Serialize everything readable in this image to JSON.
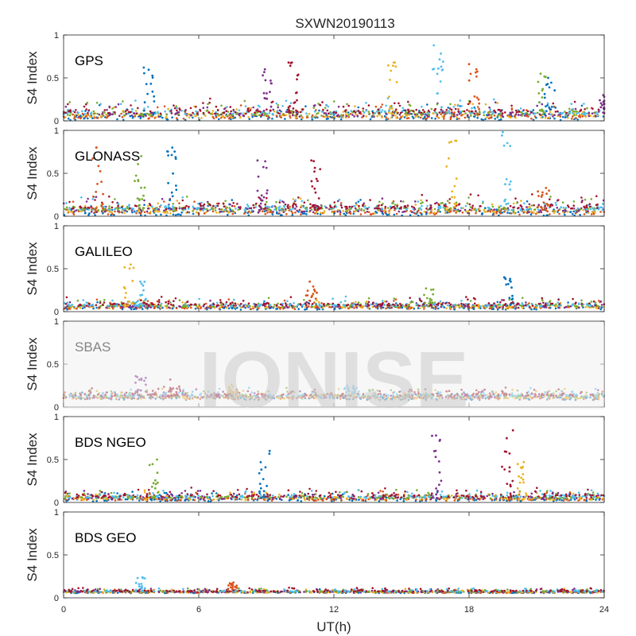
{
  "title": "SXWN20190113",
  "xlabel": "UT(h)",
  "watermark": "IONISE",
  "colors": [
    "#0072BD",
    "#D95319",
    "#EDB120",
    "#7E2F8E",
    "#77AC30",
    "#4DBEEE",
    "#A2142F"
  ],
  "chart_data": {
    "type": "scatter",
    "title": "SXWN20190113",
    "xlabel": "UT(h)",
    "ylabel": "S4 Index",
    "xlim": [
      0,
      24
    ],
    "ylim": [
      0,
      1
    ],
    "xticks": [
      0,
      6,
      12,
      18,
      24
    ],
    "yticks": [
      0,
      0.5,
      1
    ],
    "ytick_labels": [
      "0",
      "0.5",
      "1"
    ],
    "grid": false,
    "panels": [
      {
        "name": "GPS",
        "ylabel": "S4 Index",
        "baseline": 0.07,
        "noise": 0.05,
        "bursts": [
          [
            3.8,
            0.62
          ],
          [
            9.0,
            0.6
          ],
          [
            10.2,
            0.68
          ],
          [
            14.6,
            0.68
          ],
          [
            16.6,
            0.88
          ],
          [
            18.2,
            0.66
          ],
          [
            21.2,
            0.55
          ],
          [
            21.6,
            0.5
          ],
          [
            24.0,
            0.3
          ]
        ]
      },
      {
        "name": "GLONASS",
        "ylabel": "S4 Index",
        "baseline": 0.07,
        "noise": 0.05,
        "bursts": [
          [
            1.5,
            0.8
          ],
          [
            3.4,
            0.7
          ],
          [
            4.8,
            0.8
          ],
          [
            8.8,
            0.65
          ],
          [
            11.2,
            0.65
          ],
          [
            17.2,
            0.88
          ],
          [
            19.7,
            0.98
          ],
          [
            21.3,
            0.33
          ]
        ]
      },
      {
        "name": "GALILEO",
        "ylabel": "S4 Index",
        "baseline": 0.06,
        "noise": 0.03,
        "bursts": [
          [
            2.9,
            0.55
          ],
          [
            3.4,
            0.35
          ],
          [
            11.0,
            0.35
          ],
          [
            16.2,
            0.27
          ],
          [
            19.8,
            0.4
          ]
        ]
      },
      {
        "name": "SBAS",
        "ylabel": "S4 Index",
        "baseline": 0.12,
        "noise": 0.03,
        "bursts": [
          [
            3.4,
            0.36
          ],
          [
            4.9,
            0.32
          ],
          [
            7.5,
            0.26
          ],
          [
            12.7,
            0.25
          ]
        ]
      },
      {
        "name": "BDS NGEO",
        "ylabel": "S4 Index",
        "baseline": 0.05,
        "noise": 0.03,
        "bursts": [
          [
            4.0,
            0.5
          ],
          [
            8.9,
            0.6
          ],
          [
            16.6,
            0.78
          ],
          [
            19.7,
            0.84
          ],
          [
            20.4,
            0.47
          ]
        ]
      },
      {
        "name": "BDS GEO",
        "ylabel": "S4 Index",
        "baseline": 0.07,
        "noise": 0.012,
        "bursts": [
          [
            3.4,
            0.24
          ],
          [
            7.5,
            0.18
          ]
        ]
      }
    ]
  }
}
